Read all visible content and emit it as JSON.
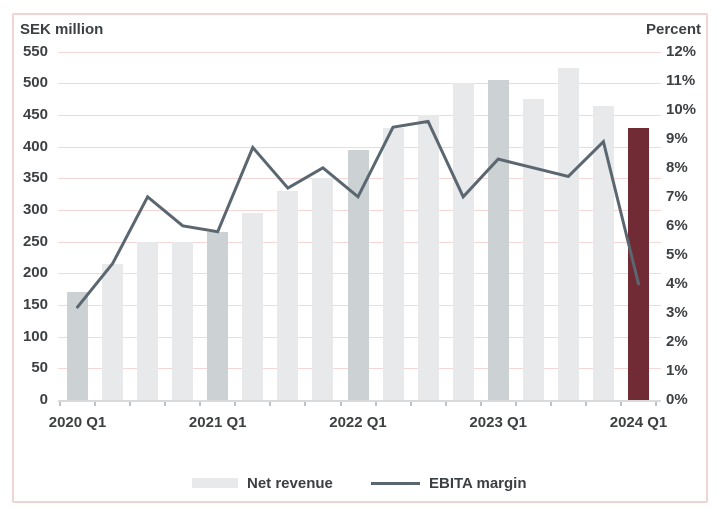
{
  "figure": {
    "left_axis_title": "SEK million",
    "right_axis_title": "Percent",
    "legend": {
      "bar_label": "Net revenue",
      "line_label": "EBITA margin"
    }
  },
  "chart_data": {
    "type": "combo-bar-line",
    "categories": [
      "2020 Q1",
      "2020 Q2",
      "2020 Q3",
      "2020 Q4",
      "2021 Q1",
      "2021 Q2",
      "2021 Q3",
      "2021 Q4",
      "2022 Q1",
      "2022 Q2",
      "2022 Q3",
      "2022 Q4",
      "2023 Q1",
      "2023 Q2",
      "2023 Q3",
      "2023 Q4",
      "2024 Q1"
    ],
    "series": [
      {
        "name": "Net revenue",
        "type": "bar",
        "axis": "left",
        "values": [
          170,
          215,
          250,
          250,
          265,
          295,
          330,
          350,
          395,
          430,
          450,
          500,
          505,
          475,
          525,
          465,
          430
        ]
      },
      {
        "name": "EBITA margin",
        "type": "line",
        "axis": "right",
        "values": [
          3.2,
          4.7,
          7.0,
          6.0,
          5.8,
          8.7,
          7.3,
          8.0,
          7.0,
          9.4,
          9.6,
          7.0,
          8.3,
          8.0,
          7.7,
          8.9,
          4.0
        ]
      }
    ],
    "bar_color_keys": [
      "dark",
      "light",
      "light",
      "light",
      "dark",
      "light",
      "light",
      "light",
      "dark",
      "light",
      "light",
      "light",
      "dark",
      "light",
      "light",
      "light",
      "highlight"
    ],
    "left_axis": {
      "title": "SEK million",
      "min": 0,
      "max": 550,
      "step": 50,
      "tick_labels": [
        "0",
        "50",
        "100",
        "150",
        "200",
        "250",
        "300",
        "350",
        "400",
        "450",
        "500",
        "550"
      ]
    },
    "right_axis": {
      "title": "Percent",
      "min": 0,
      "max": 12,
      "step": 1,
      "tick_labels": [
        "0%",
        "1%",
        "2%",
        "3%",
        "4%",
        "5%",
        "6%",
        "7%",
        "8%",
        "9%",
        "10%",
        "11%",
        "12%"
      ]
    },
    "x_axis": {
      "labeled_categories": [
        "2020 Q1",
        "2021 Q1",
        "2022 Q1",
        "2023 Q1",
        "2024 Q1"
      ],
      "labeled_indices": [
        0,
        4,
        8,
        12,
        16
      ]
    },
    "grid": true,
    "legend_position": "bottom",
    "highlight": {
      "index": 16,
      "category": "2024 Q1"
    },
    "colors": {
      "bar_light": "#e7e9ea",
      "bar_dark": "#ccd1d4",
      "bar_highlight": "#702b34",
      "line": "#5b6770",
      "gridline": "#f4d8d8",
      "axis_line": "#d8dadb",
      "tick": "#bdc2c4",
      "text": "#3d4043",
      "frame_border": "#f0d4d4"
    }
  }
}
